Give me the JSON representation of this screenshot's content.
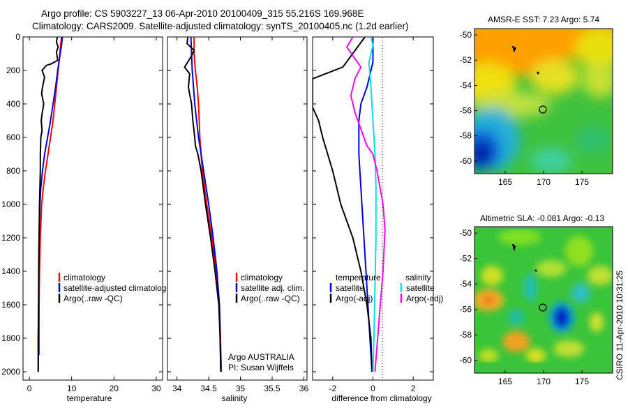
{
  "title": {
    "line1": "Argo profile: CS 5903227_13 06-Apr-2010 20100409_315 55.216S 169.968E",
    "line2": "Climatology: CARS2009. Satellite-adjusted climatology: synTS_20100405.nc (1.2d earlier)"
  },
  "colors": {
    "climatology": "#ff0000",
    "satellite": "#0000dd",
    "argo": "#000000",
    "salinity_satellite": "#00e0e8",
    "salinity_argo": "#ff00ff"
  },
  "chart_data": [
    {
      "id": "temperature",
      "type": "line",
      "xlabel": "temperature",
      "ylabel": "",
      "xlim": [
        -1.5,
        31.5
      ],
      "ylim": [
        2050,
        0
      ],
      "xticks": [
        0,
        10,
        20,
        30
      ],
      "xtick_labels": [
        "0",
        "10",
        "20",
        "30"
      ],
      "yticks": [
        0,
        200,
        400,
        600,
        800,
        1000,
        1200,
        1400,
        1600,
        1800,
        2000
      ],
      "ytick_labels": [
        "0",
        "200",
        "400",
        "600",
        "800",
        "1000",
        "1200",
        "1400",
        "1600",
        "1800",
        "2000"
      ],
      "legend": {
        "position": "lower-right",
        "entries": [
          "climatology",
          "satellite-adjusted climatology",
          "Argo(..raw -QC)"
        ]
      },
      "series": [
        {
          "name": "climatology",
          "color": "#ff0000",
          "x": [
            7.6,
            7.4,
            7.2,
            7.0,
            6.8,
            6.4,
            6.0,
            5.6,
            5.0,
            4.4,
            3.8,
            3.3,
            2.9,
            2.6,
            2.4,
            2.3,
            2.3,
            2.3
          ],
          "depth": [
            0,
            50,
            100,
            150,
            200,
            300,
            400,
            500,
            600,
            700,
            800,
            900,
            1000,
            1200,
            1400,
            1600,
            1800,
            1900
          ]
        },
        {
          "name": "satellite",
          "color": "#0000dd",
          "x": [
            7.8,
            7.6,
            7.3,
            7.0,
            6.7,
            6.2,
            5.6,
            5.0,
            4.3,
            3.6,
            3.1,
            2.7,
            2.5,
            2.3,
            2.2,
            2.2,
            2.1,
            2.1
          ],
          "depth": [
            0,
            50,
            100,
            150,
            200,
            300,
            400,
            500,
            600,
            700,
            800,
            900,
            1000,
            1200,
            1400,
            1600,
            1800,
            2000
          ]
        },
        {
          "name": "Argo",
          "color": "#000000",
          "x": [
            6.6,
            6.4,
            6.8,
            6.4,
            6.7,
            5.2,
            4.0,
            3.0,
            3.6,
            3.1,
            2.9,
            3.4,
            3.0,
            2.8,
            3.0,
            2.7,
            2.6,
            2.6,
            2.5,
            2.4,
            2.3,
            2.2,
            2.1,
            2.1
          ],
          "depth": [
            0,
            30,
            60,
            90,
            140,
            160,
            170,
            200,
            240,
            300,
            340,
            400,
            460,
            500,
            560,
            600,
            700,
            800,
            900,
            1000,
            1200,
            1500,
            1800,
            2000
          ]
        }
      ]
    },
    {
      "id": "salinity",
      "type": "line",
      "xlabel": "salinity",
      "ylabel": "",
      "xlim": [
        33.85,
        36.05
      ],
      "ylim": [
        2050,
        0
      ],
      "xticks": [
        34,
        34.5,
        35,
        35.5,
        36
      ],
      "xtick_labels": [
        "34",
        "34.5",
        "35",
        "35.5",
        "36"
      ],
      "legend": {
        "position": "lower-right",
        "entries": [
          "climatology",
          "satellite adj. clim.",
          "Argo(..raw -QC)"
        ]
      },
      "annotations": [
        "Argo AUSTRALIA",
        "PI: Susan Wijffels"
      ],
      "series": [
        {
          "name": "climatology",
          "color": "#ff0000",
          "x": [
            34.27,
            34.27,
            34.29,
            34.32,
            34.34,
            34.35,
            34.36,
            34.38,
            34.4,
            34.47,
            34.55,
            34.62,
            34.67,
            34.7
          ],
          "depth": [
            0,
            100,
            200,
            300,
            400,
            500,
            600,
            700,
            800,
            1000,
            1200,
            1400,
            1600,
            2000
          ]
        },
        {
          "name": "satellite",
          "color": "#0000dd",
          "x": [
            34.22,
            34.23,
            34.24,
            34.26,
            34.28,
            34.31,
            34.34,
            34.38,
            34.42,
            34.5,
            34.57,
            34.63,
            34.67,
            34.69
          ],
          "depth": [
            0,
            100,
            200,
            300,
            400,
            500,
            600,
            700,
            800,
            1000,
            1200,
            1400,
            1600,
            2000
          ]
        },
        {
          "name": "Argo",
          "color": "#000000",
          "x": [
            34.17,
            34.16,
            34.27,
            34.22,
            34.12,
            34.2,
            34.18,
            34.23,
            34.25,
            34.28,
            34.29,
            34.33,
            34.38,
            34.45,
            34.53,
            34.6,
            34.66,
            34.68,
            34.69
          ],
          "depth": [
            0,
            40,
            80,
            120,
            180,
            220,
            300,
            400,
            500,
            600,
            650,
            700,
            800,
            1000,
            1200,
            1400,
            1600,
            1800,
            2000
          ]
        }
      ]
    },
    {
      "id": "difference",
      "type": "line",
      "xlabel": "difference from climatology",
      "ylabel": "",
      "xlim": [
        -3,
        3
      ],
      "ylim": [
        2050,
        0
      ],
      "xticks": [
        -2,
        0,
        2
      ],
      "xtick_labels": [
        "-2",
        "0",
        "2"
      ],
      "legend_temperature": {
        "title": "temperature",
        "entries": [
          "satellite",
          "Argo(-adj)"
        ]
      },
      "legend_salinity": {
        "title": "salinity",
        "entries": [
          "satellite",
          "Argo(-adj)"
        ]
      },
      "zero_line": true,
      "series": [
        {
          "name": "temperature satellite",
          "color": "#0000dd",
          "x": [
            0.0,
            0.0,
            0.0,
            -0.1,
            -0.3,
            -0.6,
            -0.7,
            -0.7,
            -0.6,
            -0.5,
            -0.4,
            -0.3,
            -0.2,
            -0.1,
            -0.05
          ],
          "depth": [
            0,
            100,
            150,
            200,
            300,
            400,
            500,
            700,
            900,
            1100,
            1300,
            1500,
            1700,
            1900,
            2000
          ]
        },
        {
          "name": "temperature Argo(-adj)",
          "color": "#000000",
          "x": [
            -0.4,
            -1.5,
            -3.0,
            -3.0,
            -2.7,
            -2.5,
            -2.0,
            -1.6,
            -1.0,
            -0.6,
            -0.3,
            -0.1,
            -0.05
          ],
          "depth": [
            0,
            180,
            250,
            420,
            500,
            600,
            800,
            1000,
            1200,
            1400,
            1600,
            1800,
            2000
          ]
        },
        {
          "name": "salinity satellite",
          "color": "#00e0e8",
          "x": [
            -0.1,
            0.0,
            -0.2,
            -0.1,
            0.0,
            0.1,
            0.15,
            0.15,
            0.1,
            0.05,
            0.0
          ],
          "depth": [
            0,
            50,
            150,
            300,
            500,
            700,
            900,
            1200,
            1500,
            1800,
            2000
          ]
        },
        {
          "name": "salinity Argo(-adj)",
          "color": "#ff00ff",
          "x": [
            -1.0,
            -1.3,
            -0.6,
            -0.9,
            -1.1,
            -0.9,
            -0.6,
            -0.3,
            0.0,
            0.2,
            0.5,
            0.6,
            0.5,
            0.3,
            0.1
          ],
          "depth": [
            0,
            60,
            180,
            250,
            350,
            450,
            550,
            650,
            700,
            800,
            1000,
            1150,
            1400,
            1700,
            2000
          ]
        }
      ]
    },
    {
      "id": "sst_map",
      "type": "heatmap",
      "title": "AMSR-E SST: 7.23 Argo: 5.74",
      "xlim": [
        161,
        179
      ],
      "ylim": [
        -61,
        -49.5
      ],
      "xticks": [
        165,
        170,
        175
      ],
      "xtick_labels": [
        "165",
        "170",
        "175"
      ],
      "yticks": [
        -50,
        -52,
        -54,
        -56,
        -58,
        -60
      ],
      "ytick_labels": [
        "-50",
        "-52",
        "-54",
        "-56",
        "-58",
        "-60"
      ],
      "marker": {
        "lon": 169.968,
        "lat": -55.216
      }
    },
    {
      "id": "sla_map",
      "type": "heatmap",
      "title": "Altimetric SLA: -0.081 Argo: -0.13",
      "xlim": [
        161,
        179
      ],
      "ylim": [
        -61,
        -49.5
      ],
      "xticks": [
        165,
        170,
        175
      ],
      "xtick_labels": [
        "165",
        "170",
        "175"
      ],
      "yticks": [
        -50,
        -52,
        -54,
        -56,
        -58,
        -60
      ],
      "ytick_labels": [
        "-50",
        "-52",
        "-54",
        "-56",
        "-58",
        "-60"
      ],
      "marker": {
        "lon": 169.968,
        "lat": -55.216
      }
    }
  ],
  "legend_text": {
    "temperature": [
      "climatology",
      "satellite-adjusted climatolog",
      "Argo(..raw -QC)"
    ],
    "salinity": [
      "climatology",
      "satellite adj. clim.",
      "Argo(..raw -QC)"
    ],
    "diff_temperature_title": "temperature",
    "diff_salinity_title": "salinity",
    "diff_satellite": "satellite",
    "diff_argo": "Argo(-adj)"
  },
  "annotation": {
    "agency": "Argo AUSTRALIA",
    "pi": "PI: Susan Wijffels"
  },
  "footer_stamp": "CSIRO 11-Apr-2010 10:31:25"
}
